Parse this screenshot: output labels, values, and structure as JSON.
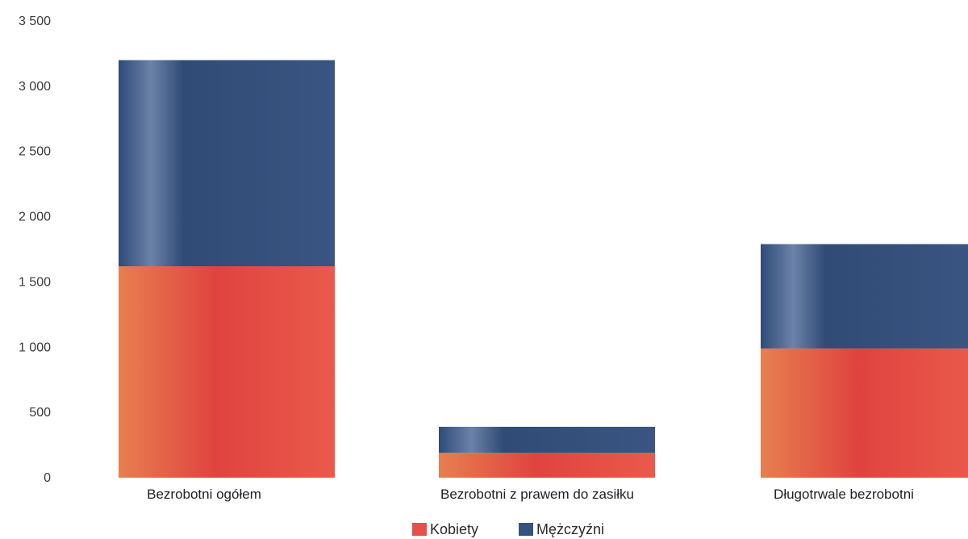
{
  "chart_data": {
    "type": "bar",
    "stacked": true,
    "categories": [
      "Bezrobotni ogółem",
      "Bezrobotni z prawem do zasiłku",
      "Długotrwale bezrobotni"
    ],
    "series": [
      {
        "name": "Kobiety",
        "values": [
          1620,
          190,
          990
        ],
        "color": "#e5504c"
      },
      {
        "name": "Mężczyźni",
        "values": [
          1580,
          200,
          800
        ],
        "color": "#36527e"
      }
    ],
    "ylim": [
      0,
      3500
    ],
    "y_ticks": [
      {
        "value": 0,
        "label": "0"
      },
      {
        "value": 500,
        "label": "500"
      },
      {
        "value": 1000,
        "label": "1 000"
      },
      {
        "value": 1500,
        "label": "1 500"
      },
      {
        "value": 2000,
        "label": "2 000"
      },
      {
        "value": 2500,
        "label": "2 500"
      },
      {
        "value": 3000,
        "label": "3 000"
      },
      {
        "value": 3500,
        "label": "3 500"
      }
    ],
    "grid": false,
    "legend_position": "bottom-center",
    "title": "",
    "xlabel": "",
    "ylabel": ""
  }
}
